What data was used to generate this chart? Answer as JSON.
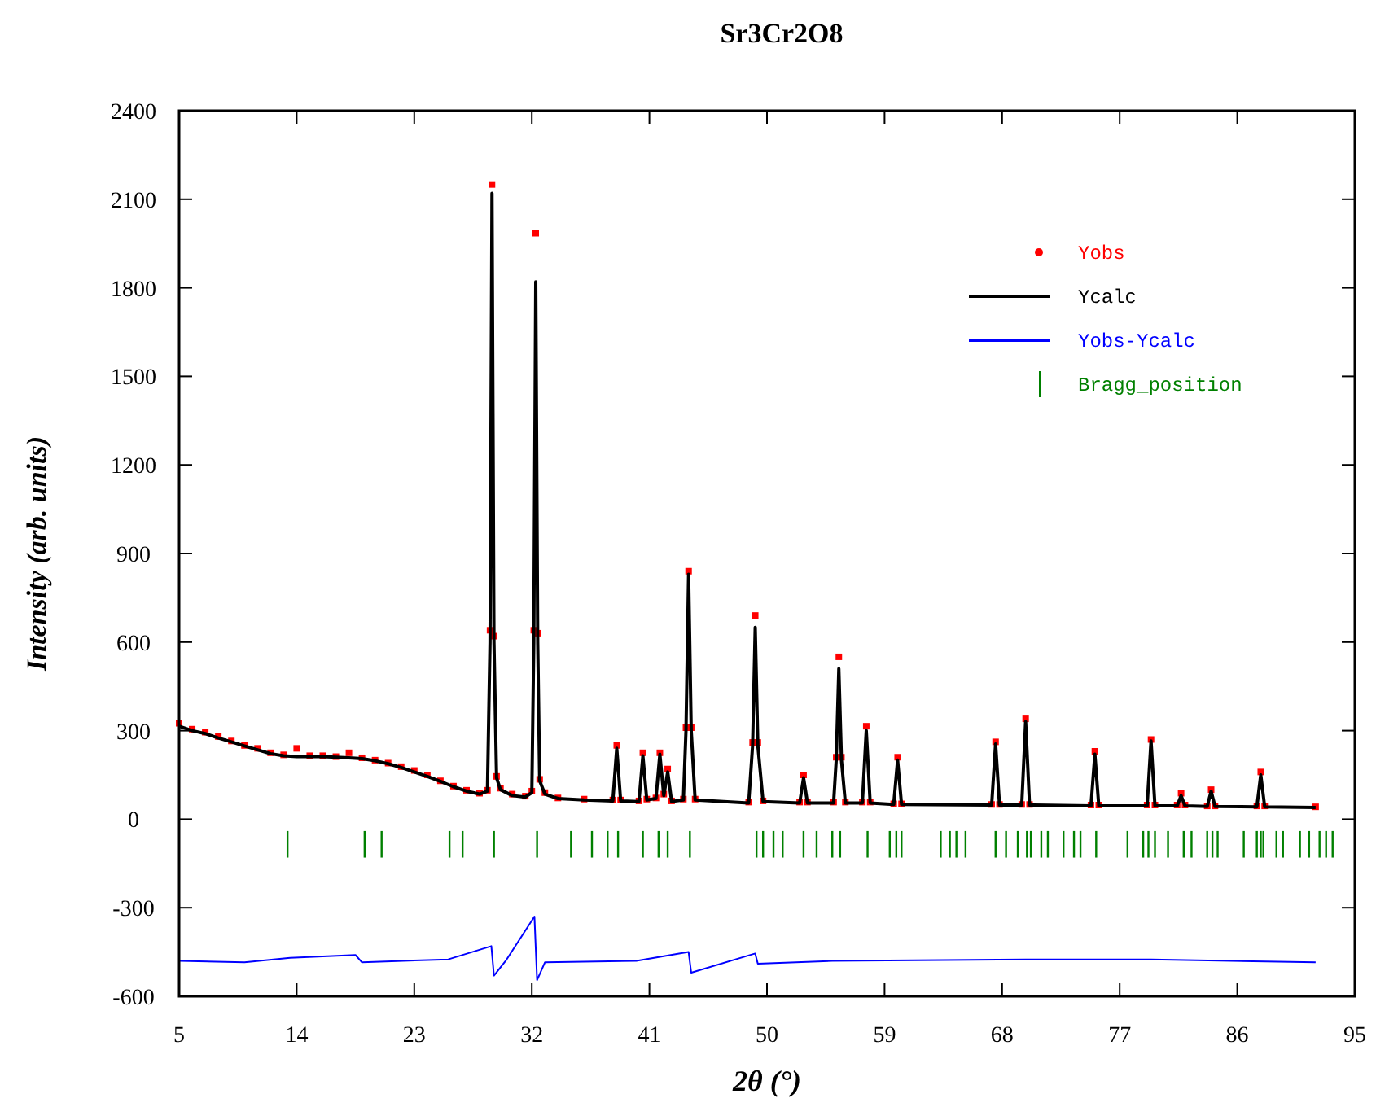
{
  "chart_data": {
    "type": "scatter",
    "title": "Sr3Cr2O8",
    "xlabel": "2θ (°)",
    "ylabel": "Intensity (arb. units)",
    "xlim": [
      5,
      95
    ],
    "xticks": [
      5,
      14,
      23,
      32,
      41,
      50,
      59,
      68,
      77,
      86,
      95
    ],
    "ylim": [
      -600,
      2400
    ],
    "yticks": [
      -600,
      -300,
      0,
      300,
      600,
      900,
      1200,
      1500,
      1800,
      2100,
      2400
    ],
    "grid": false,
    "legend": "top right",
    "series": [
      {
        "name": "Yobs",
        "marker": "square",
        "color": "#ff0000",
        "x": [
          5,
          6,
          7,
          8,
          9,
          10,
          11,
          12,
          13,
          14,
          15,
          16,
          17,
          18,
          19,
          20,
          21,
          22,
          23,
          24,
          25,
          26,
          27,
          28,
          28.6,
          28.8,
          28.95,
          29.1,
          29.3,
          29.6,
          30.5,
          31.5,
          32,
          32.15,
          32.3,
          32.45,
          32.6,
          33,
          34,
          36,
          38.2,
          38.5,
          38.8,
          40.2,
          40.5,
          40.8,
          41.5,
          41.8,
          42.1,
          42.4,
          42.7,
          43.6,
          43.8,
          44,
          44.2,
          44.5,
          48.6,
          48.9,
          49.1,
          49.3,
          49.7,
          52.5,
          52.8,
          53.1,
          55.1,
          55.3,
          55.5,
          55.7,
          56,
          57.3,
          57.6,
          57.9,
          59.7,
          60,
          60.3,
          67.2,
          67.5,
          67.8,
          69.5,
          69.8,
          70.1,
          74.8,
          75.1,
          75.4,
          79.1,
          79.4,
          79.7,
          81.4,
          81.7,
          82,
          83.7,
          84,
          84.3,
          87.5,
          87.8,
          88.1,
          92
        ],
        "values": [
          325,
          305,
          295,
          280,
          265,
          250,
          240,
          225,
          218,
          240,
          215,
          215,
          212,
          225,
          208,
          200,
          190,
          178,
          165,
          150,
          130,
          112,
          98,
          88,
          98,
          640,
          2150,
          620,
          145,
          105,
          85,
          78,
          95,
          640,
          1985,
          630,
          135,
          90,
          72,
          68,
          65,
          250,
          65,
          62,
          225,
          68,
          72,
          225,
          85,
          170,
          62,
          68,
          310,
          840,
          310,
          68,
          58,
          260,
          690,
          260,
          62,
          58,
          150,
          58,
          58,
          210,
          550,
          210,
          58,
          58,
          315,
          58,
          52,
          210,
          52,
          50,
          262,
          50,
          50,
          340,
          50,
          48,
          230,
          48,
          48,
          270,
          48,
          48,
          88,
          48,
          45,
          100,
          45,
          45,
          160,
          45,
          42
        ]
      },
      {
        "name": "Ycalc",
        "type": "line",
        "color": "#000000",
        "x": [
          5,
          6,
          7,
          8,
          9,
          10,
          11,
          12,
          13,
          14,
          15,
          16,
          17,
          18,
          19,
          20,
          21,
          22,
          23,
          24,
          25,
          26,
          27,
          28,
          28.6,
          28.8,
          28.95,
          29.1,
          29.3,
          29.6,
          30.5,
          31.5,
          32,
          32.15,
          32.3,
          32.45,
          32.6,
          33,
          34,
          36,
          38.2,
          38.5,
          38.8,
          40.2,
          40.5,
          40.8,
          41.5,
          41.8,
          42.1,
          42.4,
          42.7,
          43.6,
          43.8,
          44,
          44.2,
          44.5,
          48.6,
          48.9,
          49.1,
          49.3,
          49.7,
          52.5,
          52.8,
          53.1,
          55.1,
          55.3,
          55.5,
          55.7,
          56,
          57.3,
          57.6,
          57.9,
          59.7,
          60,
          60.3,
          67.2,
          67.5,
          67.8,
          69.5,
          69.8,
          70.1,
          74.8,
          75.1,
          75.4,
          79.1,
          79.4,
          79.7,
          81.4,
          81.7,
          82,
          83.7,
          84,
          84.3,
          87.5,
          87.8,
          88.1,
          92
        ],
        "values": [
          315,
          300,
          290,
          275,
          262,
          248,
          235,
          222,
          215,
          212,
          212,
          212,
          210,
          208,
          205,
          198,
          188,
          175,
          160,
          145,
          128,
          110,
          95,
          85,
          95,
          600,
          2120,
          600,
          140,
          100,
          80,
          75,
          90,
          600,
          1820,
          600,
          130,
          85,
          70,
          65,
          62,
          240,
          62,
          60,
          215,
          65,
          70,
          220,
          80,
          160,
          60,
          65,
          300,
          830,
          300,
          65,
          55,
          250,
          650,
          250,
          60,
          55,
          140,
          55,
          55,
          200,
          510,
          200,
          55,
          55,
          300,
          55,
          50,
          200,
          50,
          48,
          255,
          48,
          48,
          330,
          48,
          45,
          220,
          45,
          45,
          265,
          45,
          45,
          80,
          45,
          43,
          95,
          43,
          42,
          150,
          42,
          40
        ]
      },
      {
        "name": "Yobs-Ycalc",
        "type": "line",
        "color": "#0000ff",
        "x": [
          5,
          10,
          13.5,
          18.5,
          19,
          25.6,
          28.9,
          29.1,
          30,
          32.2,
          32.4,
          33,
          40,
          44,
          44.2,
          49.1,
          49.3,
          55,
          69.8,
          79.4,
          92
        ],
        "values": [
          -480,
          -485,
          -470,
          -460,
          -485,
          -475,
          -430,
          -530,
          -480,
          -330,
          -545,
          -485,
          -480,
          -450,
          -520,
          -455,
          -490,
          -480,
          -475,
          -475,
          -485
        ]
      },
      {
        "name": "Bragg_position",
        "type": "bar",
        "color": "#008000",
        "base": [
          -130,
          -130,
          -130,
          -130,
          -130,
          -130,
          -130,
          -130,
          -130,
          -130,
          -130,
          -130,
          -130,
          -130,
          -130,
          -130,
          -130,
          -130,
          -130,
          -130,
          -130,
          -130,
          -130,
          -130,
          -130,
          -130,
          -130,
          -130,
          -130,
          -130,
          -130,
          -130,
          -130,
          -130,
          -130,
          -130,
          -130,
          -130,
          -130,
          -130,
          -130,
          -130,
          -130,
          -130,
          -130,
          -130,
          -130,
          -130,
          -130,
          -130,
          -130,
          -130,
          -130,
          -130,
          -130,
          -130,
          -130,
          -130,
          -130,
          -130,
          -130,
          -130,
          -130
        ],
        "x": [
          13.3,
          19.2,
          20.5,
          25.7,
          26.7,
          29.1,
          32.4,
          35,
          36.6,
          37.8,
          38.6,
          40.5,
          41.7,
          42.4,
          44.1,
          49.2,
          49.7,
          50.5,
          51.2,
          52.8,
          53.8,
          55,
          55.6,
          57.7,
          59.4,
          59.9,
          60.3,
          63.3,
          64,
          64.5,
          65.2,
          67.5,
          68.3,
          69.2,
          69.9,
          70.2,
          71,
          71.5,
          72.7,
          73.5,
          74,
          75.2,
          77.6,
          78.8,
          79.2,
          79.7,
          80.7,
          81.9,
          82.5,
          83.7,
          84.1,
          84.5,
          86.5,
          87.5,
          87.8,
          88,
          89,
          89.5,
          90.8,
          91.5,
          92.3,
          92.8,
          93.3
        ],
        "values": [
          90,
          90,
          90,
          90,
          90,
          90,
          90,
          90,
          90,
          90,
          90,
          90,
          90,
          90,
          90,
          90,
          90,
          90,
          90,
          90,
          90,
          90,
          90,
          90,
          90,
          90,
          90,
          90,
          90,
          90,
          90,
          90,
          90,
          90,
          90,
          90,
          90,
          90,
          90,
          90,
          90,
          90,
          90,
          90,
          90,
          90,
          90,
          90,
          90,
          90,
          90,
          90,
          90,
          90,
          90,
          90,
          90,
          90,
          90,
          90,
          90,
          90,
          90
        ]
      }
    ]
  }
}
